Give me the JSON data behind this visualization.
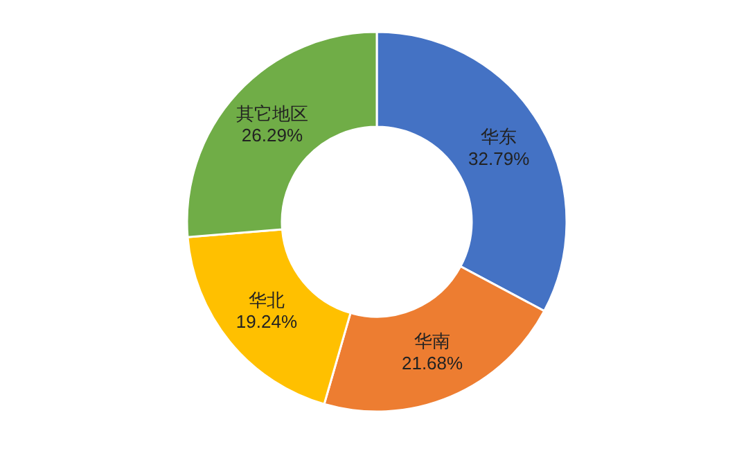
{
  "chart_data": {
    "type": "donut",
    "categories": [
      "华东",
      "华南",
      "华北",
      "其它地区"
    ],
    "values": [
      32.79,
      21.68,
      19.24,
      26.29
    ],
    "colors": [
      "#4472c4",
      "#ed7d31",
      "#ffc000",
      "#70ad47"
    ],
    "value_labels": [
      "32.79%",
      "21.68%",
      "19.24%",
      "26.29%"
    ]
  }
}
